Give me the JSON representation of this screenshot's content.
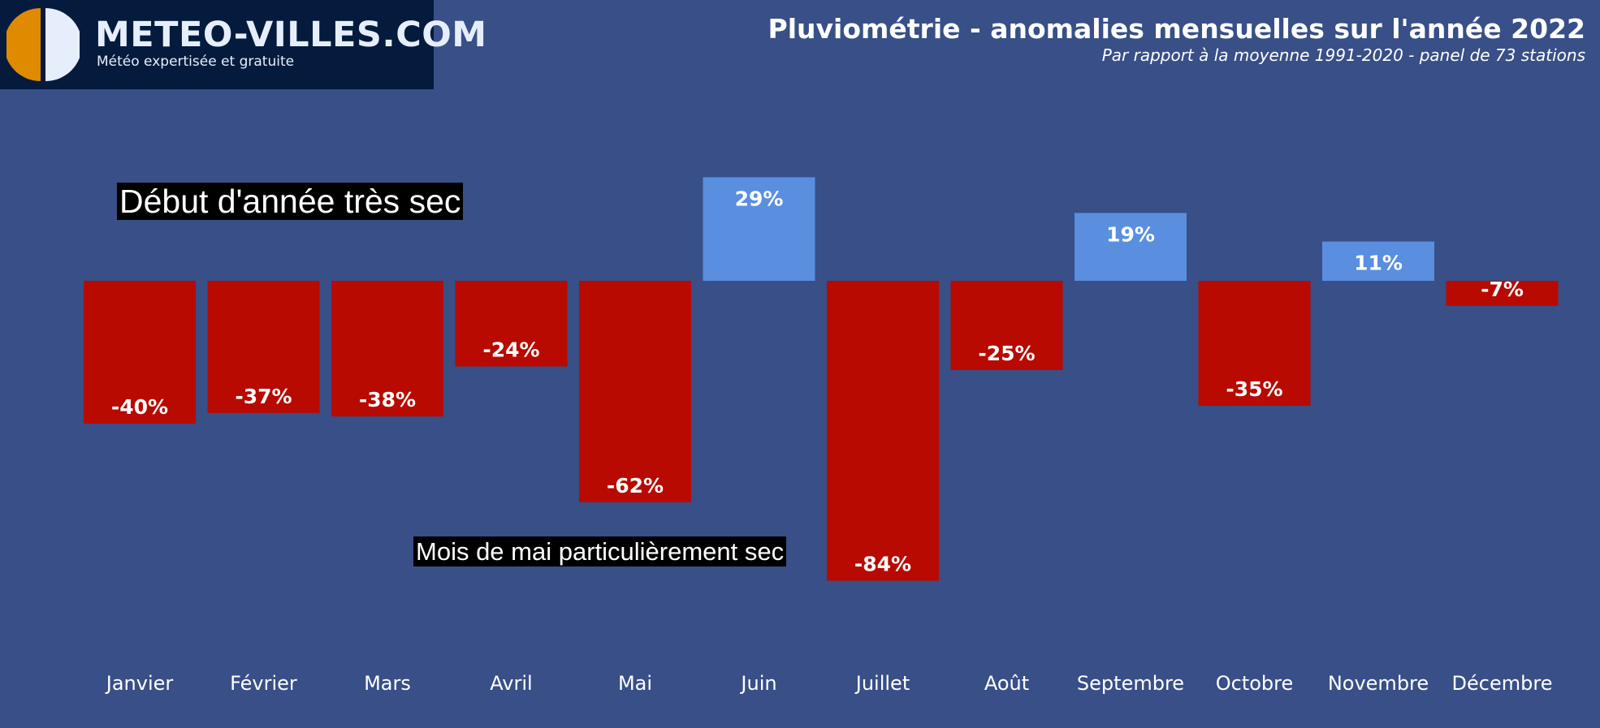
{
  "logo": {
    "name": "METEO-VILLES.COM",
    "tagline": "Météo expertisée et gratuite",
    "colors": {
      "left_half": "#e08a00",
      "right_half": "#e6eefb",
      "background": "#041b3e"
    }
  },
  "colors": {
    "background": "#384f87",
    "negative_bar": "#b80a00",
    "positive_bar": "#5a8fdf",
    "label_text": "#ffffff"
  },
  "annotations": [
    {
      "text": "Début d'année très sec"
    },
    {
      "text": "Mois de mai particulièrement sec"
    }
  ],
  "chart_data": {
    "type": "bar",
    "title": "Pluviométrie - anomalies mensuelles sur l'année 2022",
    "subtitle": "Par rapport à la moyenne 1991-2020 - panel de 73 stations",
    "xlabel": "",
    "ylabel": "",
    "categories": [
      "Janvier",
      "Février",
      "Mars",
      "Avril",
      "Mai",
      "Juin",
      "Juillet",
      "Août",
      "Septembre",
      "Octobre",
      "Novembre",
      "Décembre"
    ],
    "values": [
      -40,
      -37,
      -38,
      -24,
      -62,
      29,
      -84,
      -25,
      19,
      -35,
      11,
      -7
    ],
    "value_labels": [
      "-40%",
      "-37%",
      "-38%",
      "-24%",
      "-62%",
      "29%",
      "-84%",
      "-25%",
      "19%",
      "-35%",
      "11%",
      "-7%"
    ],
    "ylim": [
      -84,
      29
    ],
    "grid": false,
    "legend": "none"
  }
}
